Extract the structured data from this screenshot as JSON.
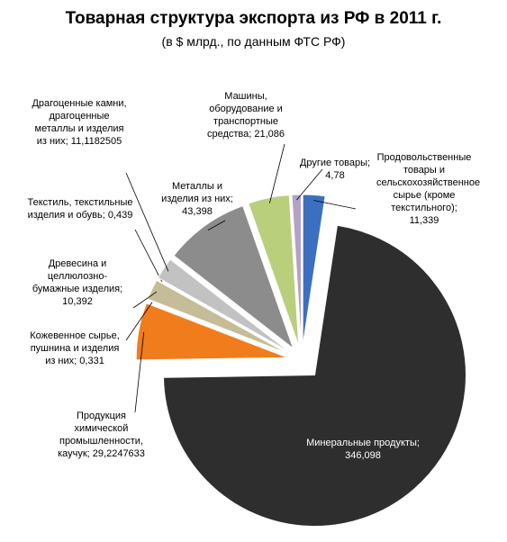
{
  "chart_data": {
    "type": "pie",
    "title": "Товарная структура экспорта из РФ в 2011 г.",
    "subtitle": "(в $ млрд., по данным ФТС РФ)",
    "label_separator": "; ",
    "categories": [
      "Продовольственные товары и сельскохозяйственное сырье (кроме текстильного)",
      "Минеральные продукты",
      "Продукция химической промышленности, каучук",
      "Кожевенное сырье, пушнина и изделия из них",
      "Древесина и целлюлозно-бумажные изделия",
      "Текстиль, текстильные изделия и обувь",
      "Драгоценные камни, драгоценные металлы и изделия из них",
      "Металлы и изделия из них",
      "Машины, оборудование и транспортные средства",
      "Другие товары"
    ],
    "values": [
      11.339,
      346.098,
      29.2247633,
      0.331,
      10.392,
      0.439,
      11.1182505,
      43.398,
      21.086,
      4.78
    ],
    "value_labels": [
      "11,339",
      "346,098",
      "29,2247633",
      "0,331",
      "10,392",
      "0,439",
      "11,1182505",
      "43,398",
      "21,086",
      "4,78"
    ],
    "colors": [
      "#3c6fc0",
      "#2e2e2e",
      "#f07c1c",
      "#8a7f6a",
      "#c4bd97",
      "#8eb0dc",
      "#c2c2c2",
      "#8c8c8c",
      "#b9cf7c",
      "#b3a2c7"
    ]
  }
}
